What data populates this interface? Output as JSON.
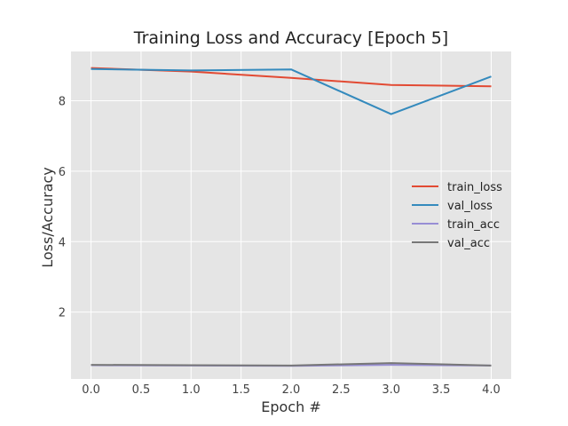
{
  "chart_data": {
    "type": "line",
    "title": "Training Loss and Accuracy [Epoch 5]",
    "xlabel": "Epoch #",
    "ylabel": "Loss/Accuracy",
    "xlim": [
      -0.2,
      4.2
    ],
    "ylim": [
      0.1,
      9.4
    ],
    "xticks": [
      "0.0",
      "0.5",
      "1.0",
      "1.5",
      "2.0",
      "2.5",
      "3.0",
      "3.5",
      "4.0"
    ],
    "yticks": [
      "2",
      "4",
      "6",
      "8"
    ],
    "grid": true,
    "legend_position": "center-right",
    "x": [
      0,
      1,
      2,
      3,
      4
    ],
    "series": [
      {
        "name": "train_loss",
        "color": "#E24A33",
        "values": [
          8.93,
          8.83,
          8.65,
          8.45,
          8.41
        ]
      },
      {
        "name": "val_loss",
        "color": "#348ABD",
        "values": [
          8.9,
          8.86,
          8.89,
          7.62,
          8.69
        ]
      },
      {
        "name": "train_acc",
        "color": "#988ED5",
        "values": [
          0.49,
          0.48,
          0.47,
          0.5,
          0.48
        ]
      },
      {
        "name": "val_acc",
        "color": "#777777",
        "values": [
          0.5,
          0.49,
          0.48,
          0.55,
          0.48
        ]
      }
    ]
  }
}
